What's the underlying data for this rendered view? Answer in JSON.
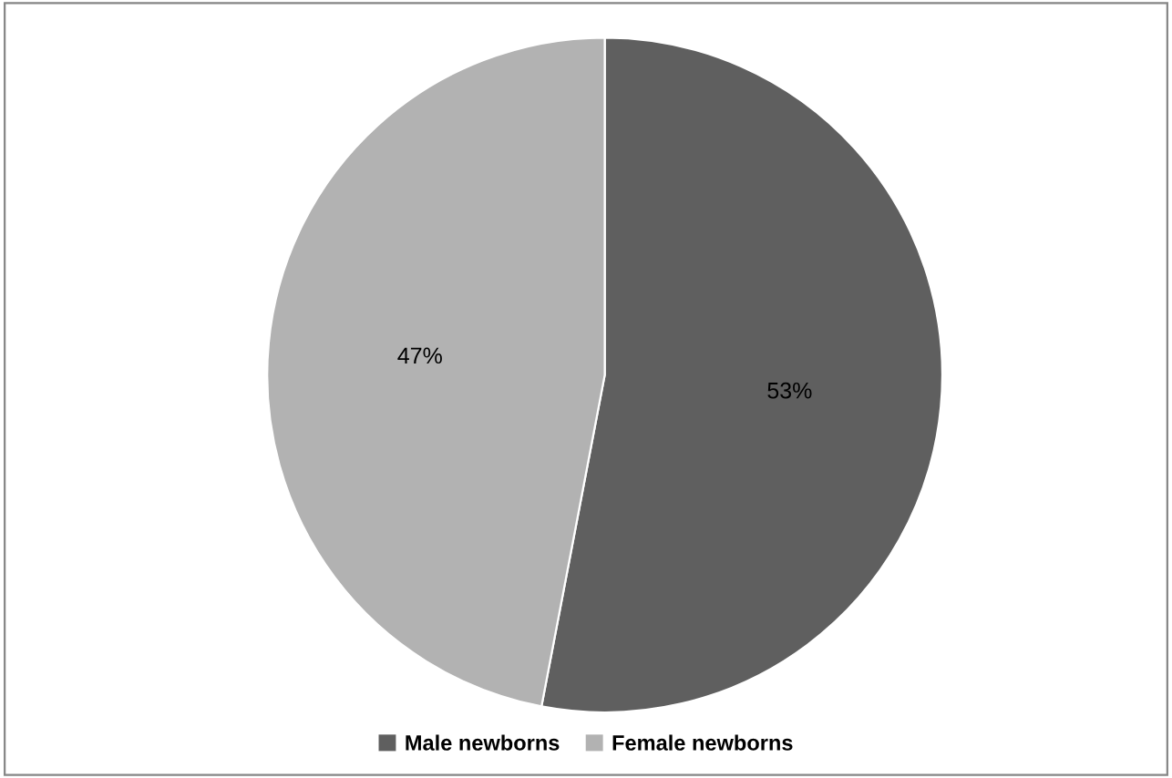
{
  "chart_data": {
    "type": "pie",
    "categories": [
      "Male newborns",
      "Female newborns"
    ],
    "values": [
      53,
      47
    ],
    "value_labels": [
      "53%",
      "47%"
    ],
    "colors": [
      "#5f5f5f",
      "#b2b2b2"
    ],
    "legend": "bottom"
  }
}
